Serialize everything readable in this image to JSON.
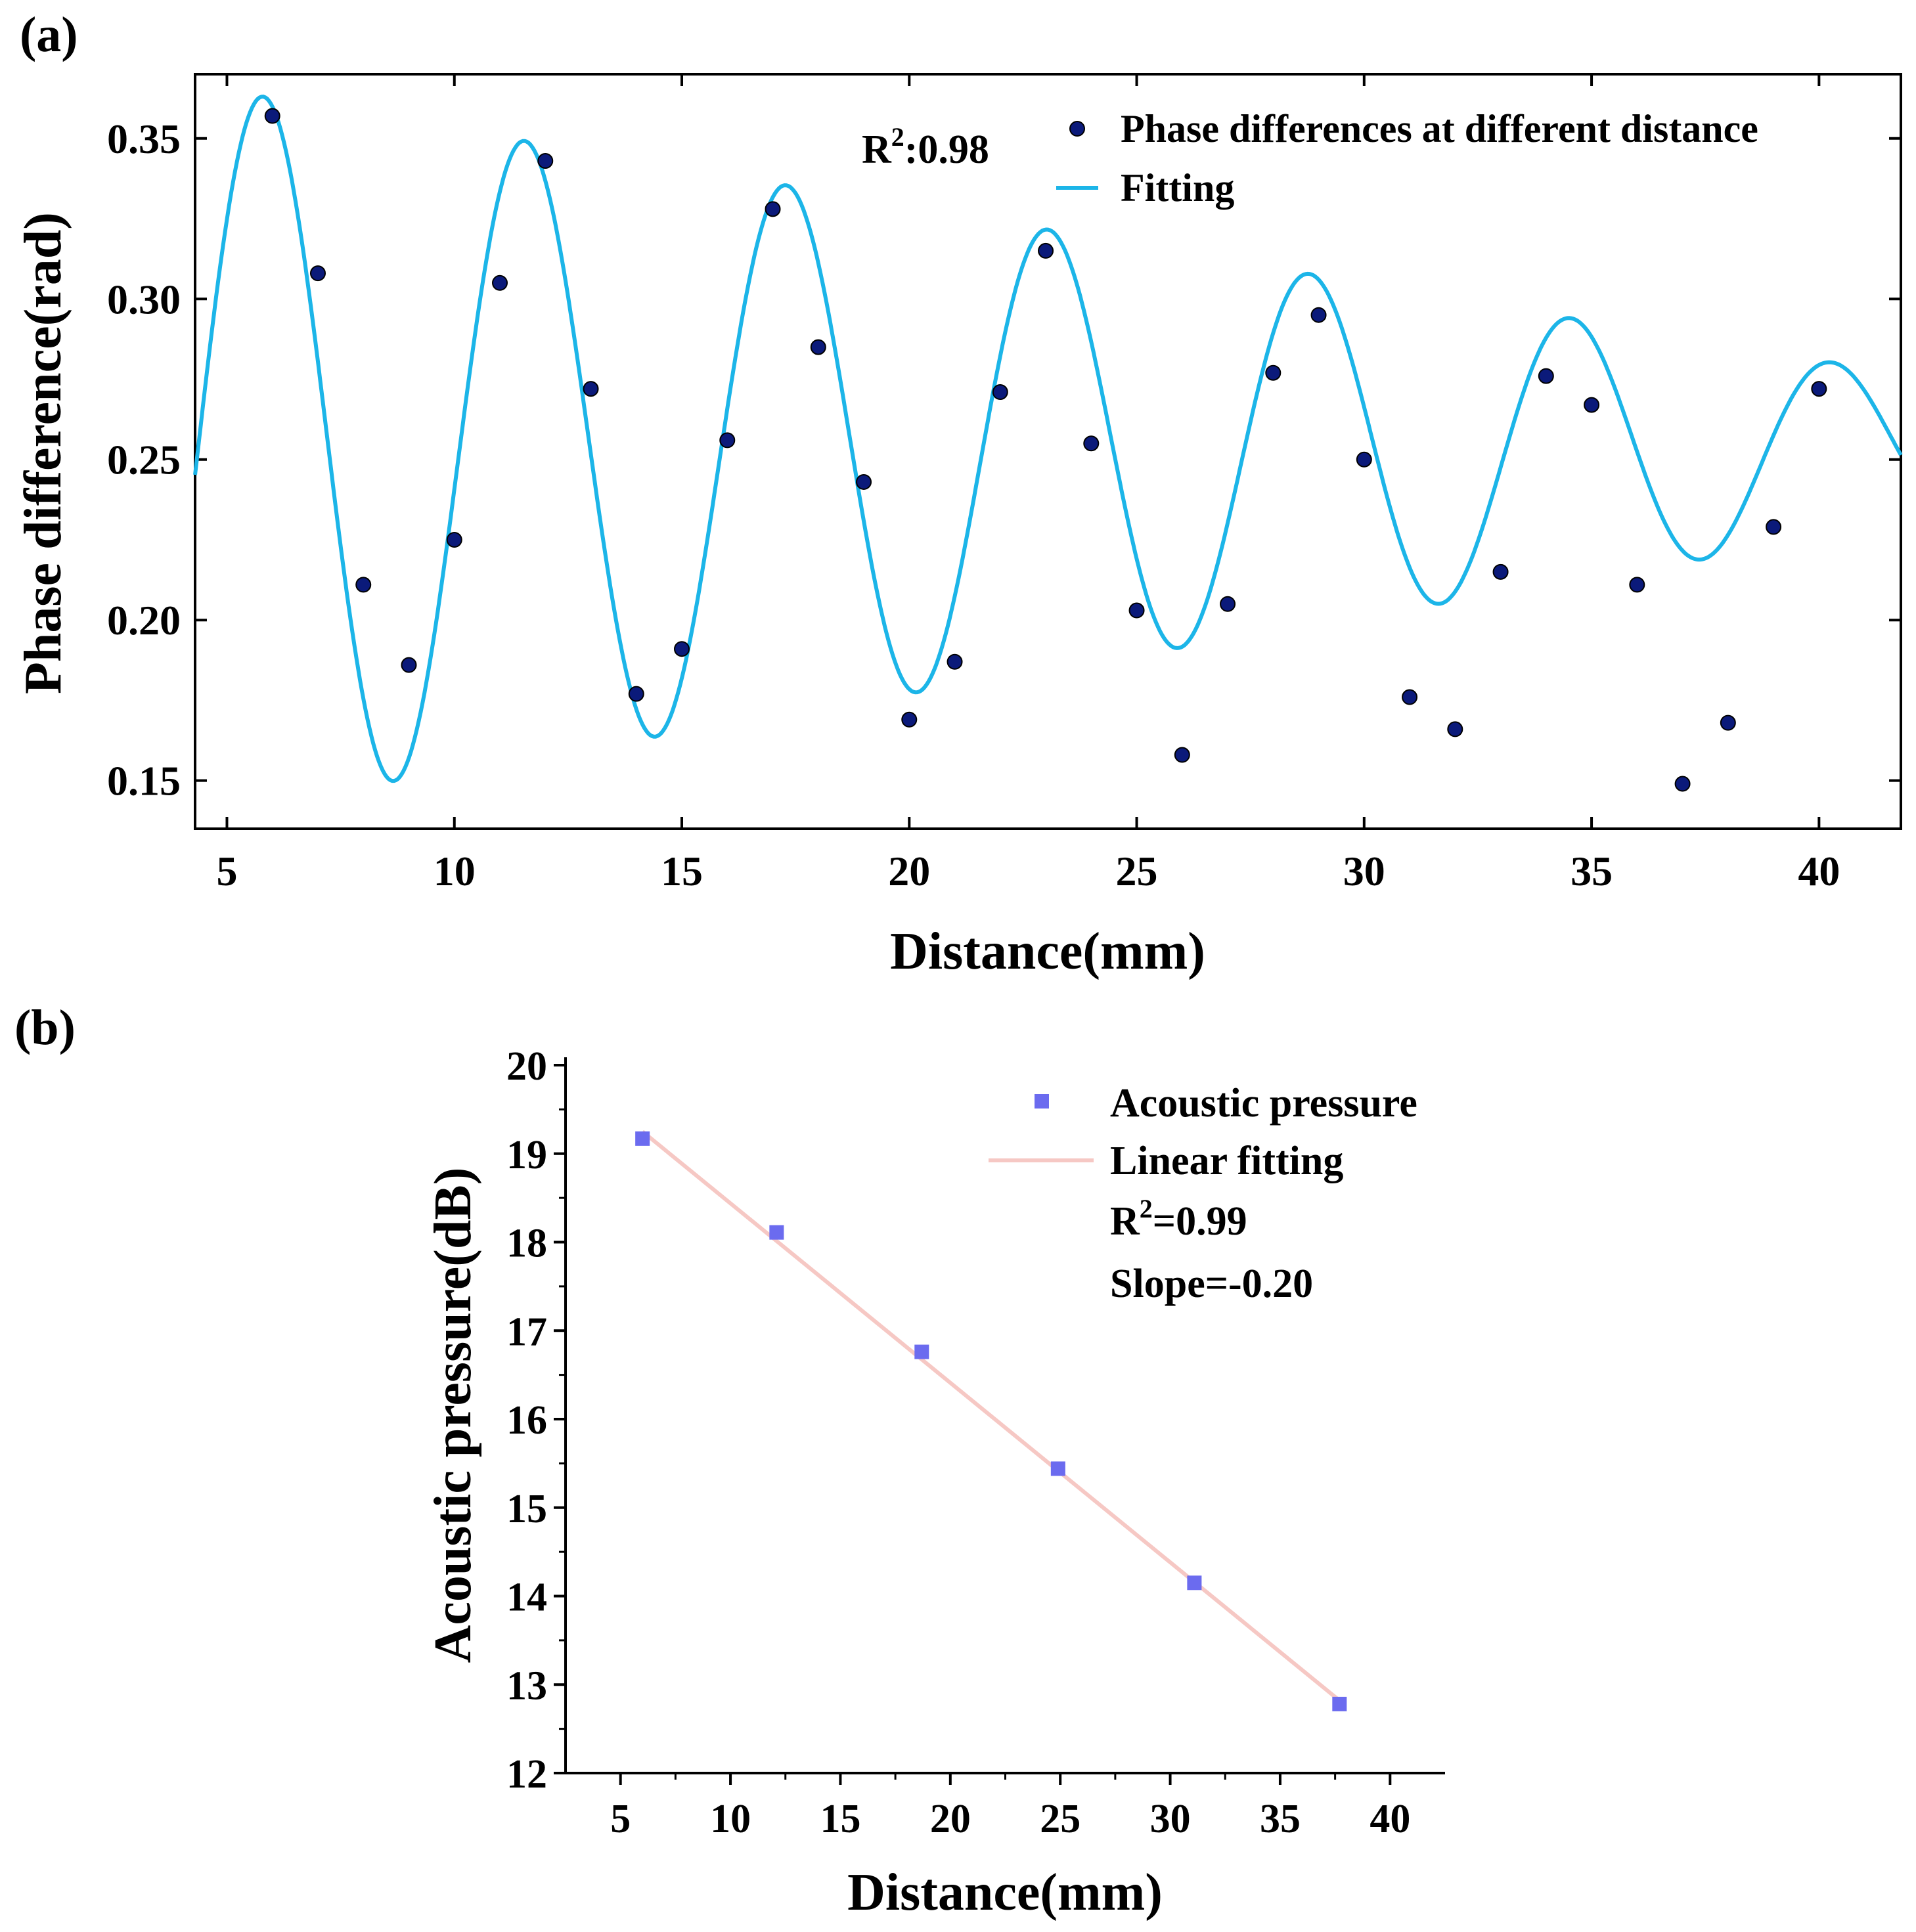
{
  "chart_data": [
    {
      "panel_label": "(a)",
      "type": "scatter",
      "xlabel": "Distance(mm)",
      "ylabel": "Phase difference(rad)",
      "xlim": [
        4.3,
        41.8
      ],
      "ylim": [
        0.135,
        0.37
      ],
      "x_ticks": [
        5,
        10,
        15,
        20,
        25,
        30,
        35,
        40
      ],
      "y_ticks": [
        0.15,
        0.2,
        0.25,
        0.3,
        0.35
      ],
      "y_tick_labels": [
        "0.15",
        "0.20",
        "0.25",
        "0.30",
        "0.35"
      ],
      "annotation": {
        "prefix": "R",
        "sup": "2",
        "suffix": ":0.98"
      },
      "legend": {
        "placement": "top-right",
        "points_label": "Phase differences at different distance",
        "line_label": "Fitting"
      },
      "colors": {
        "points": "#0b1a7a",
        "fit": "#1cb5e8"
      },
      "series": [
        {
          "name": "Phase differences at different distance",
          "kind": "scatter",
          "x": [
            6,
            7,
            8,
            9,
            10,
            11,
            12,
            13,
            14,
            15,
            16,
            17,
            18,
            19,
            20,
            21,
            22,
            23,
            24,
            25,
            26,
            27,
            28,
            29,
            30,
            31,
            32,
            33,
            34,
            35,
            36,
            37,
            38,
            39,
            40
          ],
          "y": [
            0.357,
            0.308,
            0.211,
            0.186,
            0.225,
            0.305,
            0.343,
            0.272,
            0.177,
            0.191,
            0.256,
            0.328,
            0.285,
            0.243,
            0.169,
            0.187,
            0.271,
            0.315,
            0.255,
            0.203,
            0.158,
            0.205,
            0.277,
            0.295,
            0.25,
            0.176,
            0.166,
            0.215,
            0.276,
            0.267,
            0.211,
            0.149,
            0.168,
            0.229,
            0.272
          ]
        },
        {
          "name": "Fitting",
          "kind": "damped-sine",
          "offset": 0.253,
          "amplitude_start": 0.11,
          "amplitude_slope": -0.0024,
          "period": 5.75,
          "peak_x": 5.8,
          "x_range": [
            4.3,
            41.8
          ]
        }
      ]
    },
    {
      "panel_label": "(b)",
      "type": "scatter",
      "xlabel": "Distance(mm)",
      "ylabel": "Acoustic pressure(dB)",
      "xlim": [
        2.5,
        42.5
      ],
      "ylim": [
        12,
        20
      ],
      "x_ticks": [
        5,
        10,
        15,
        20,
        25,
        30,
        35,
        40
      ],
      "y_ticks": [
        12,
        13,
        14,
        15,
        16,
        17,
        18,
        19,
        20
      ],
      "legend": {
        "placement": "top-right",
        "points_label": "Acoustic pressure",
        "line_label": "Linear fitting",
        "r2": {
          "prefix": "R",
          "sup": "2",
          "suffix": "=0.99"
        },
        "slope": "Slope=-0.20"
      },
      "colors": {
        "points": "#6b6bef",
        "fit": "#f6c8c4"
      },
      "series": [
        {
          "name": "Acoustic pressure",
          "kind": "scatter",
          "x": [
            6.0,
            12.1,
            18.7,
            24.9,
            31.1,
            37.7
          ],
          "y": [
            19.17,
            18.11,
            16.76,
            15.44,
            14.15,
            12.78
          ]
        },
        {
          "name": "Linear fitting",
          "kind": "line",
          "x": [
            6.0,
            37.7
          ],
          "y": [
            19.25,
            12.82
          ]
        }
      ]
    }
  ]
}
